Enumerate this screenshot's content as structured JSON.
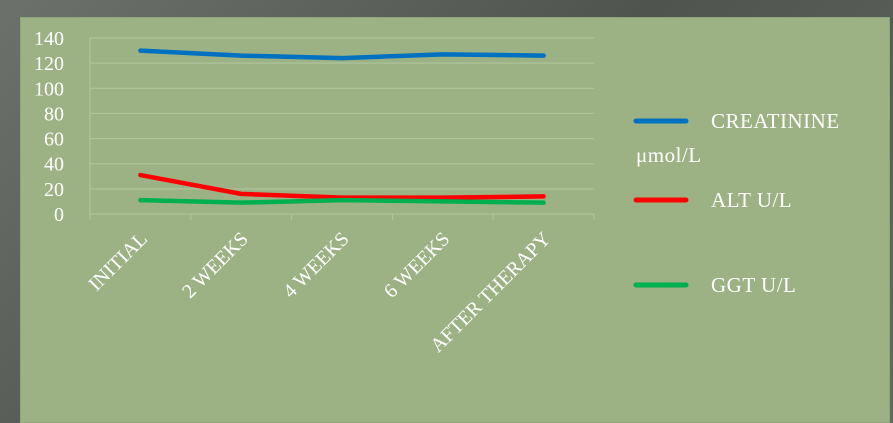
{
  "chart_data": {
    "type": "line",
    "categories": [
      "INITIAL",
      "2 WEEKS",
      "4 WEEKS",
      "6 WEEKS",
      "AFTER THERAPY"
    ],
    "series": [
      {
        "name": "CREATININE μmol/L",
        "legend_lines": [
          "CREATININE",
          "μmol/L"
        ],
        "color": "#0070c0",
        "values": [
          130,
          126,
          124,
          127,
          126
        ]
      },
      {
        "name": "ALT U/L",
        "legend_lines": [
          "ALT   U/L"
        ],
        "color": "#ff0000",
        "values": [
          31,
          16,
          13,
          13,
          14
        ]
      },
      {
        "name": "GGT U/L",
        "legend_lines": [
          "GGT  U/L"
        ],
        "color": "#00b050",
        "values": [
          11,
          9,
          11,
          10,
          9
        ]
      }
    ],
    "y_ticks": [
      0,
      20,
      40,
      60,
      80,
      100,
      120,
      140
    ],
    "ylim": [
      0,
      140
    ],
    "grid": true,
    "legend_position": "right",
    "title": "",
    "xlabel": "",
    "ylabel": ""
  }
}
